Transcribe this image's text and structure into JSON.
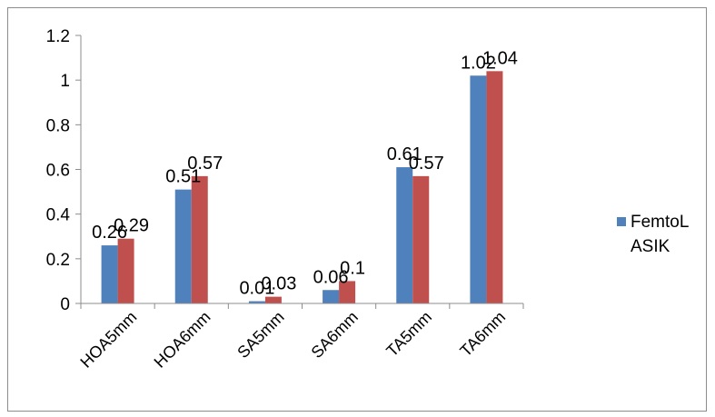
{
  "chart_data": {
    "type": "bar",
    "categories": [
      "HOA5mm",
      "HOA6mm",
      "SA5mm",
      "SA6mm",
      "TA5mm",
      "TA6mm"
    ],
    "series": [
      {
        "name": "FemtoLASIK",
        "color": "#4f81bd",
        "values": [
          0.26,
          0.51,
          0.01,
          0.06,
          0.61,
          1.02
        ]
      },
      {
        "name": "",
        "color": "#c0504d",
        "values": [
          0.29,
          0.57,
          0.03,
          0.1,
          0.57,
          1.04
        ]
      }
    ],
    "data_labels": [
      [
        "0.26",
        "0.51",
        "0.01",
        "0.06",
        "0.61",
        "1.02"
      ],
      [
        "0.29",
        "0.57",
        "0.03",
        "0.1",
        "0.57",
        "1.04"
      ]
    ],
    "legend": {
      "position": "right",
      "lines": [
        "FemtoL",
        "ASIK"
      ]
    },
    "y_ticks": [
      "0",
      "0.2",
      "0.4",
      "0.6",
      "0.8",
      "1",
      "1.2"
    ],
    "ylim": [
      0,
      1.2
    ],
    "grid": false,
    "title": "",
    "xlabel": "",
    "ylabel": ""
  }
}
